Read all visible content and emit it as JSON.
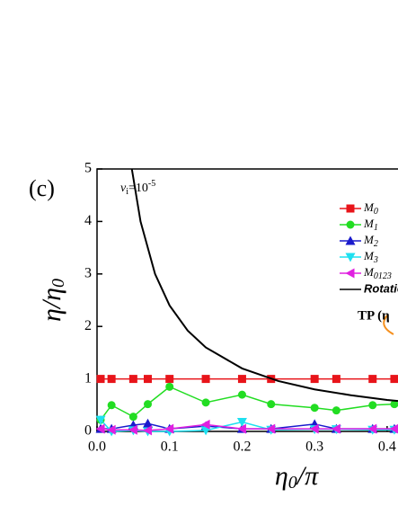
{
  "chart_data": {
    "type": "line",
    "panel": "(c)",
    "annotation": {
      "symbol": "ν",
      "sub": "i",
      "text": "=10",
      "sup": "-5"
    },
    "tp_label": "TP (η",
    "y_label": {
      "main": "η/η",
      "sub": "0"
    },
    "x_label": {
      "main": "η",
      "sub": "0",
      "rest": "/π"
    },
    "xlim": [
      0,
      0.415
    ],
    "ylim": [
      0,
      5
    ],
    "xticks": [
      {
        "value": 0,
        "label": "0.0"
      },
      0.1,
      0.2,
      0.3,
      0.4
    ],
    "yticks": [
      0,
      1,
      2,
      3,
      4,
      5
    ],
    "series": [
      {
        "name": "M0",
        "color": "#e8141a",
        "marker": "square",
        "x": [
          0.005,
          0.02,
          0.05,
          0.07,
          0.1,
          0.15,
          0.2,
          0.24,
          0.3,
          0.33,
          0.38,
          0.41
        ],
        "values": [
          1,
          1,
          1,
          1,
          1,
          1,
          1,
          1,
          1,
          1,
          1,
          1
        ]
      },
      {
        "name": "M1",
        "color": "#22dd22",
        "marker": "circle",
        "x": [
          0.005,
          0.02,
          0.05,
          0.07,
          0.1,
          0.15,
          0.2,
          0.24,
          0.3,
          0.33,
          0.38,
          0.41
        ],
        "values": [
          0.22,
          0.5,
          0.28,
          0.52,
          0.85,
          0.55,
          0.7,
          0.52,
          0.45,
          0.4,
          0.5,
          0.52
        ]
      },
      {
        "name": "M2",
        "color": "#1a1acc",
        "marker": "triangle-up",
        "x": [
          0.005,
          0.02,
          0.05,
          0.07,
          0.1,
          0.15,
          0.2,
          0.24,
          0.3,
          0.33,
          0.38,
          0.41
        ],
        "values": [
          0.05,
          0.05,
          0.12,
          0.15,
          0.05,
          0.1,
          0.05,
          0.05,
          0.14,
          0.05,
          0.05,
          0.05
        ]
      },
      {
        "name": "M3",
        "color": "#1ee0f0",
        "marker": "triangle-down",
        "x": [
          0.005,
          0.02,
          0.05,
          0.07,
          0.1,
          0.15,
          0.2,
          0.24,
          0.3,
          0.33,
          0.38,
          0.41
        ],
        "values": [
          0.22,
          0,
          0.02,
          0,
          0,
          0.02,
          0.18,
          0.03,
          0.04,
          0.04,
          0.03,
          0.03
        ]
      },
      {
        "name": "M0123",
        "color": "#e020e0",
        "marker": "triangle-left",
        "x": [
          0.005,
          0.02,
          0.05,
          0.07,
          0.1,
          0.15,
          0.2,
          0.24,
          0.3,
          0.33,
          0.38,
          0.41
        ],
        "values": [
          0.05,
          0.03,
          0.03,
          0.02,
          0.05,
          0.13,
          0.05,
          0.05,
          0.05,
          0.05,
          0.05,
          0.05
        ]
      },
      {
        "name": "Rotation",
        "color": "#000000",
        "marker": "none",
        "x": [
          0.048,
          0.06,
          0.08,
          0.1,
          0.125,
          0.15,
          0.2,
          0.25,
          0.3,
          0.35,
          0.4,
          0.415
        ],
        "values": [
          5,
          4,
          3,
          2.4,
          1.92,
          1.6,
          1.2,
          0.96,
          0.8,
          0.69,
          0.6,
          0.58
        ]
      }
    ]
  }
}
